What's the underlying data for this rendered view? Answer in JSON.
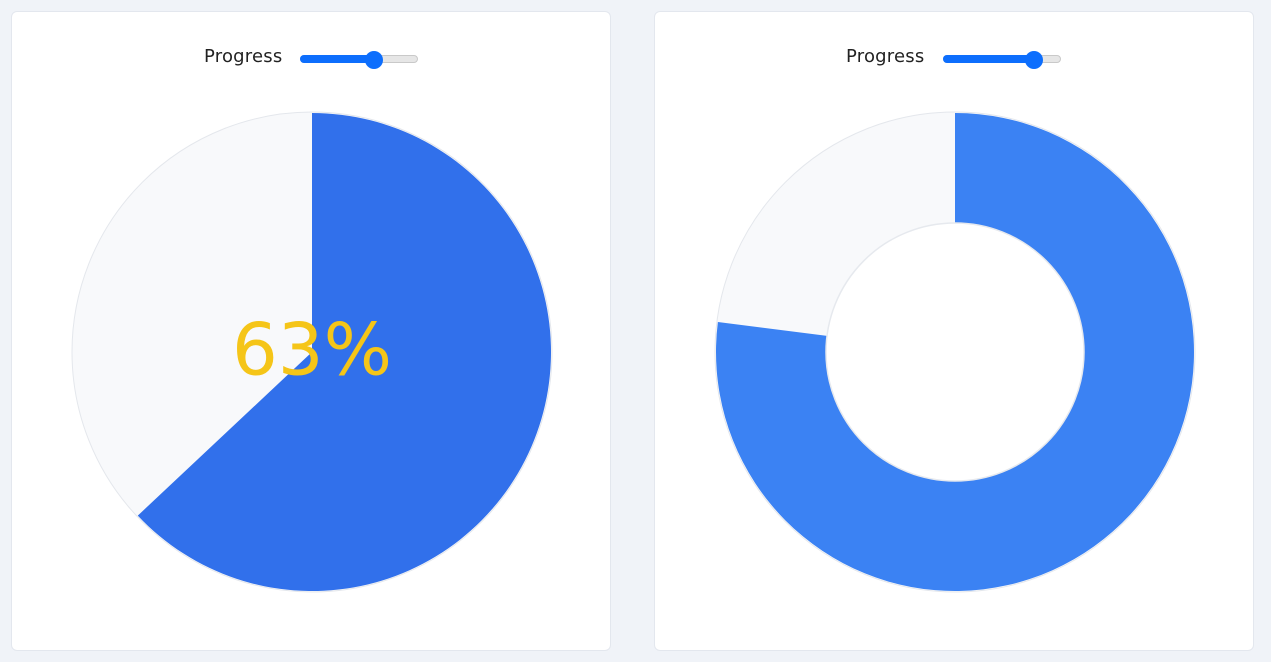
{
  "panels": [
    {
      "control_label": "Progress",
      "progress_percent": 63,
      "display_text": "63%",
      "style": "pie",
      "fill_color": "#3170eb",
      "remaining_color": "#f8f9fb",
      "text_color": "#f5c518"
    },
    {
      "control_label": "Progress",
      "progress_percent": 77,
      "style": "donut",
      "fill_color": "#3b82f3",
      "remaining_color": "#f8f9fb"
    }
  ],
  "slider_color": "#0d6efd"
}
